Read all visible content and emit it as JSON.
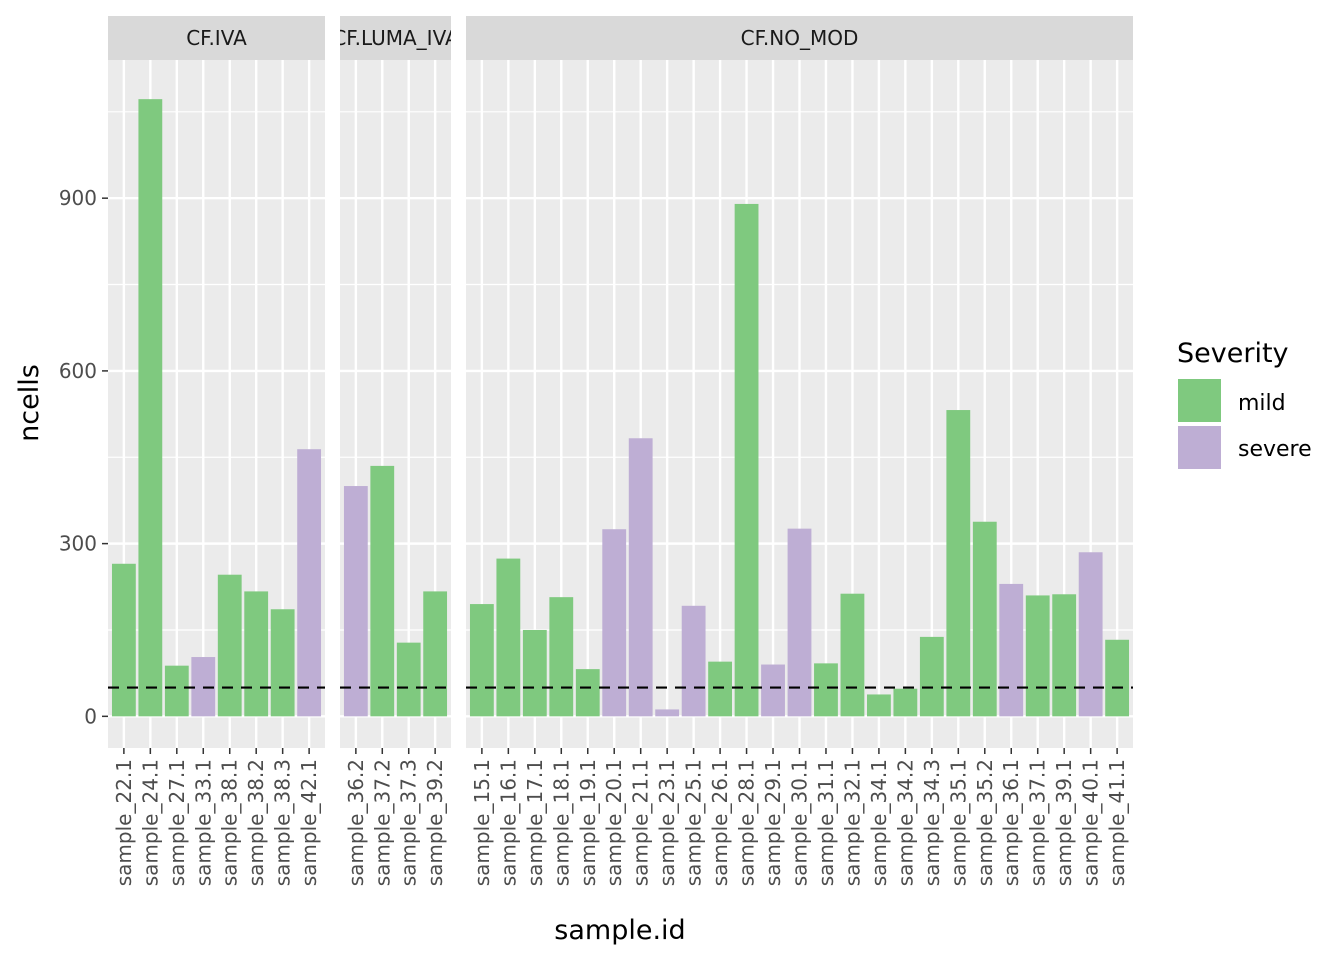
{
  "chart_data": {
    "type": "bar",
    "title": "",
    "xlabel": "sample.id",
    "ylabel": "ncells",
    "ylim": [
      -55,
      1140
    ],
    "yticks": [
      0,
      300,
      600,
      900
    ],
    "threshold": 50,
    "colors": {
      "mild": "#7fc97f",
      "severe": "#beaed4",
      "panel_bg": "#ebebeb",
      "strip_bg": "#d9d9d9",
      "grid": "#ffffff"
    },
    "legend": {
      "title": "Severity",
      "position": "right",
      "items": [
        {
          "key": "mild",
          "label": "mild"
        },
        {
          "key": "severe",
          "label": "severe"
        }
      ]
    },
    "facets": [
      {
        "label": "CF.IVA",
        "bars": [
          {
            "id": "sample_22.1",
            "value": 265,
            "severity": "mild"
          },
          {
            "id": "sample_24.1",
            "value": 1072,
            "severity": "mild"
          },
          {
            "id": "sample_27.1",
            "value": 88,
            "severity": "mild"
          },
          {
            "id": "sample_33.1",
            "value": 103,
            "severity": "severe"
          },
          {
            "id": "sample_38.1",
            "value": 246,
            "severity": "mild"
          },
          {
            "id": "sample_38.2",
            "value": 217,
            "severity": "mild"
          },
          {
            "id": "sample_38.3",
            "value": 186,
            "severity": "mild"
          },
          {
            "id": "sample_42.1",
            "value": 464,
            "severity": "severe"
          }
        ]
      },
      {
        "label": "CF.LUMA_IVA",
        "bars": [
          {
            "id": "sample_36.2",
            "value": 400,
            "severity": "severe"
          },
          {
            "id": "sample_37.2",
            "value": 435,
            "severity": "mild"
          },
          {
            "id": "sample_37.3",
            "value": 128,
            "severity": "mild"
          },
          {
            "id": "sample_39.2",
            "value": 217,
            "severity": "mild"
          }
        ]
      },
      {
        "label": "CF.NO_MOD",
        "bars": [
          {
            "id": "sample_15.1",
            "value": 195,
            "severity": "mild"
          },
          {
            "id": "sample_16.1",
            "value": 274,
            "severity": "mild"
          },
          {
            "id": "sample_17.1",
            "value": 150,
            "severity": "mild"
          },
          {
            "id": "sample_18.1",
            "value": 207,
            "severity": "mild"
          },
          {
            "id": "sample_19.1",
            "value": 82,
            "severity": "mild"
          },
          {
            "id": "sample_20.1",
            "value": 325,
            "severity": "severe"
          },
          {
            "id": "sample_21.1",
            "value": 483,
            "severity": "severe"
          },
          {
            "id": "sample_23.1",
            "value": 12,
            "severity": "severe"
          },
          {
            "id": "sample_25.1",
            "value": 192,
            "severity": "severe"
          },
          {
            "id": "sample_26.1",
            "value": 95,
            "severity": "mild"
          },
          {
            "id": "sample_28.1",
            "value": 890,
            "severity": "mild"
          },
          {
            "id": "sample_29.1",
            "value": 90,
            "severity": "severe"
          },
          {
            "id": "sample_30.1",
            "value": 326,
            "severity": "severe"
          },
          {
            "id": "sample_31.1",
            "value": 92,
            "severity": "mild"
          },
          {
            "id": "sample_32.1",
            "value": 213,
            "severity": "mild"
          },
          {
            "id": "sample_34.1",
            "value": 38,
            "severity": "mild"
          },
          {
            "id": "sample_34.2",
            "value": 48,
            "severity": "mild"
          },
          {
            "id": "sample_34.3",
            "value": 138,
            "severity": "mild"
          },
          {
            "id": "sample_35.1",
            "value": 532,
            "severity": "mild"
          },
          {
            "id": "sample_35.2",
            "value": 338,
            "severity": "mild"
          },
          {
            "id": "sample_36.1",
            "value": 230,
            "severity": "severe"
          },
          {
            "id": "sample_37.1",
            "value": 210,
            "severity": "mild"
          },
          {
            "id": "sample_39.1",
            "value": 212,
            "severity": "mild"
          },
          {
            "id": "sample_40.1",
            "value": 285,
            "severity": "severe"
          },
          {
            "id": "sample_41.1",
            "value": 133,
            "severity": "mild"
          }
        ]
      }
    ]
  }
}
